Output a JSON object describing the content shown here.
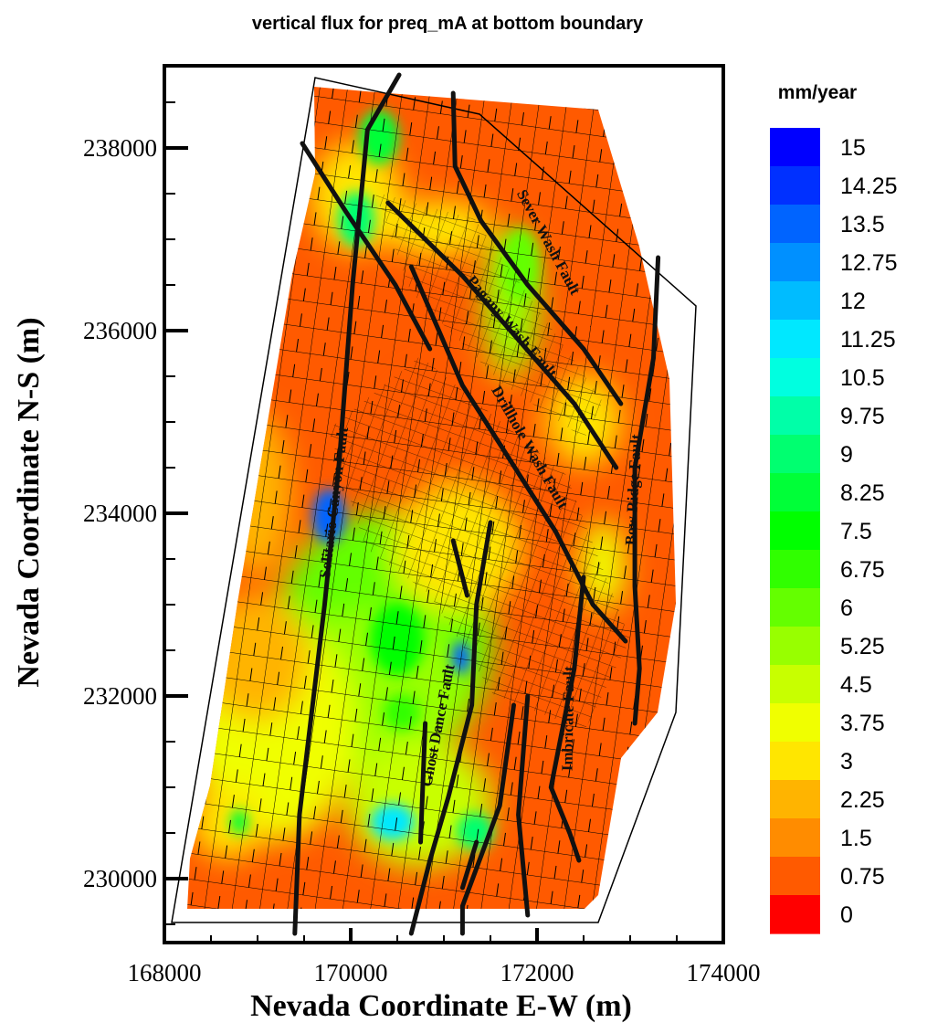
{
  "chart_data": {
    "type": "heatmap",
    "title": "vertical flux for preq_mA at bottom boundary",
    "xlabel": "Nevada Coordinate E-W (m)",
    "ylabel": "Nevada Coordinate N-S (m)",
    "xlim": [
      168000,
      174000
    ],
    "ylim": [
      229300,
      238900
    ],
    "xticks": [
      168000,
      170000,
      172000,
      174000
    ],
    "xtick_labels": [
      "168000",
      "170000",
      "172000",
      "174000"
    ],
    "yticks": [
      230000,
      232000,
      234000,
      236000,
      238000
    ],
    "ytick_labels": [
      "230000",
      "232000",
      "234000",
      "236000",
      "238000"
    ],
    "colorbar": {
      "title": "mm/year",
      "levels": [
        15,
        14.25,
        13.5,
        12.75,
        12,
        11.25,
        10.5,
        9.75,
        9,
        8.25,
        7.5,
        6.75,
        6,
        5.25,
        4.5,
        3.75,
        3,
        2.25,
        1.5,
        0.75,
        0
      ],
      "labels": [
        "15",
        "14.25",
        "13.5",
        "12.75",
        "12",
        "11.25",
        "10.5",
        "9.75",
        "9",
        "8.25",
        "7.5",
        "6.75",
        "6",
        "5.25",
        "4.5",
        "3.75",
        "3",
        "2.25",
        "1.5",
        "0.75",
        "0"
      ],
      "colors": [
        "#0000ff",
        "#0030ff",
        "#0064ff",
        "#0090ff",
        "#00bcff",
        "#00e8ff",
        "#00ffe0",
        "#00ffa8",
        "#00ff70",
        "#00ff38",
        "#00ff00",
        "#30ff00",
        "#64ff00",
        "#98ff00",
        "#c8ff00",
        "#f0ff00",
        "#ffe600",
        "#ffb400",
        "#ff8c00",
        "#ff5a00",
        "#ff0000"
      ]
    },
    "faults": [
      {
        "label": "Solitario Canyon Fault",
        "points": [
          [
            169400,
            229400
          ],
          [
            169450,
            230700
          ],
          [
            169720,
            233000
          ],
          [
            169880,
            234600
          ],
          [
            170020,
            236500
          ],
          [
            170180,
            238200
          ],
          [
            170520,
            238800
          ]
        ]
      },
      {
        "label": "",
        "points": [
          [
            169480,
            238050
          ],
          [
            169950,
            237300
          ],
          [
            170480,
            236500
          ],
          [
            170850,
            235800
          ]
        ]
      },
      {
        "label": "Sever Wash Fault",
        "points": [
          [
            171100,
            238600
          ],
          [
            171120,
            237800
          ],
          [
            171400,
            237200
          ],
          [
            171900,
            236500
          ],
          [
            172500,
            235800
          ],
          [
            172900,
            235200
          ]
        ]
      },
      {
        "label": "Pagany Wash Fault",
        "points": [
          [
            170400,
            237400
          ],
          [
            171200,
            236600
          ],
          [
            171800,
            235900
          ],
          [
            172400,
            235200
          ],
          [
            172850,
            234500
          ]
        ]
      },
      {
        "label": "Drillhole Wash Fault",
        "points": [
          [
            170650,
            236700
          ],
          [
            171200,
            235400
          ],
          [
            171700,
            234600
          ],
          [
            172200,
            233800
          ],
          [
            172600,
            233000
          ],
          [
            172950,
            232600
          ]
        ]
      },
      {
        "label": "Bow Ridge Fault",
        "points": [
          [
            173300,
            236800
          ],
          [
            173250,
            235700
          ],
          [
            173050,
            234500
          ],
          [
            173050,
            233200
          ],
          [
            173100,
            232300
          ],
          [
            173050,
            231700
          ]
        ]
      },
      {
        "label": "Imbricate Fault",
        "points": [
          [
            172500,
            233300
          ],
          [
            172400,
            232300
          ],
          [
            172150,
            231000
          ],
          [
            172350,
            230500
          ],
          [
            172450,
            230200
          ]
        ]
      },
      {
        "label": "Ghost Dance Fault",
        "points": [
          [
            171500,
            233900
          ],
          [
            171350,
            233000
          ],
          [
            171300,
            231900
          ],
          [
            171050,
            230900
          ],
          [
            170850,
            230200
          ],
          [
            170650,
            229400
          ]
        ]
      },
      {
        "label": "",
        "points": [
          [
            171100,
            233700
          ],
          [
            171250,
            233100
          ]
        ]
      },
      {
        "label": "",
        "points": [
          [
            170800,
            231700
          ],
          [
            170750,
            230400
          ]
        ]
      },
      {
        "label": "",
        "points": [
          [
            171750,
            231900
          ],
          [
            171600,
            230800
          ],
          [
            171200,
            229700
          ],
          [
            171200,
            229400
          ]
        ]
      },
      {
        "label": "",
        "points": [
          [
            171900,
            232000
          ],
          [
            171800,
            230700
          ],
          [
            171900,
            229600
          ]
        ]
      },
      {
        "label": "",
        "points": [
          [
            171350,
            230400
          ],
          [
            171200,
            229900
          ]
        ]
      }
    ]
  }
}
